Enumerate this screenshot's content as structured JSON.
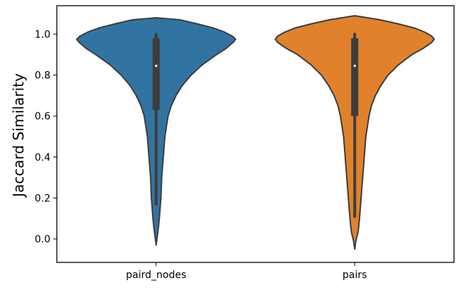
{
  "chart_data": {
    "type": "violin",
    "title": "",
    "xlabel": "",
    "ylabel": "Jaccard Similarity",
    "ylim": [
      -0.1,
      1.14
    ],
    "yticks": [
      0.0,
      0.2,
      0.4,
      0.6,
      0.8,
      1.0
    ],
    "ytick_labels": [
      "0.0",
      "0.2",
      "0.4",
      "0.6",
      "0.8",
      "1.0"
    ],
    "grid": false,
    "legend": "none",
    "categories": [
      "paird_nodes",
      "pairs"
    ],
    "series": [
      {
        "category": "paird_nodes",
        "color": "#3274a1",
        "median": 0.845,
        "q1": 0.63,
        "q3": 0.98,
        "whisker_low": 0.17,
        "whisker_high": 1.0,
        "density": [
          [
            -0.03,
            0.0
          ],
          [
            0.0,
            0.01
          ],
          [
            0.03,
            0.02
          ],
          [
            0.06,
            0.03
          ],
          [
            0.1,
            0.04
          ],
          [
            0.15,
            0.05
          ],
          [
            0.2,
            0.06
          ],
          [
            0.25,
            0.065
          ],
          [
            0.3,
            0.07
          ],
          [
            0.35,
            0.08
          ],
          [
            0.4,
            0.09
          ],
          [
            0.45,
            0.1
          ],
          [
            0.5,
            0.11
          ],
          [
            0.55,
            0.13
          ],
          [
            0.6,
            0.15
          ],
          [
            0.65,
            0.19
          ],
          [
            0.7,
            0.25
          ],
          [
            0.75,
            0.33
          ],
          [
            0.8,
            0.44
          ],
          [
            0.85,
            0.58
          ],
          [
            0.9,
            0.76
          ],
          [
            0.93,
            0.88
          ],
          [
            0.96,
            0.97
          ],
          [
            0.975,
            1.0
          ],
          [
            0.99,
            0.96
          ],
          [
            1.01,
            0.86
          ],
          [
            1.03,
            0.72
          ],
          [
            1.05,
            0.52
          ],
          [
            1.07,
            0.3
          ],
          [
            1.08,
            0.0
          ]
        ]
      },
      {
        "category": "pairs",
        "color": "#e1812c",
        "median": 0.845,
        "q1": 0.6,
        "q3": 0.98,
        "whisker_low": 0.11,
        "whisker_high": 1.0,
        "density": [
          [
            -0.05,
            0.0
          ],
          [
            -0.02,
            0.01
          ],
          [
            0.0,
            0.02
          ],
          [
            0.03,
            0.04
          ],
          [
            0.06,
            0.05
          ],
          [
            0.1,
            0.06
          ],
          [
            0.15,
            0.07
          ],
          [
            0.2,
            0.08
          ],
          [
            0.25,
            0.09
          ],
          [
            0.3,
            0.1
          ],
          [
            0.35,
            0.11
          ],
          [
            0.4,
            0.12
          ],
          [
            0.45,
            0.13
          ],
          [
            0.5,
            0.14
          ],
          [
            0.55,
            0.16
          ],
          [
            0.6,
            0.18
          ],
          [
            0.65,
            0.21
          ],
          [
            0.7,
            0.26
          ],
          [
            0.75,
            0.33
          ],
          [
            0.8,
            0.42
          ],
          [
            0.85,
            0.55
          ],
          [
            0.9,
            0.72
          ],
          [
            0.93,
            0.86
          ],
          [
            0.96,
            0.97
          ],
          [
            0.975,
            1.0
          ],
          [
            0.99,
            0.97
          ],
          [
            1.01,
            0.88
          ],
          [
            1.03,
            0.75
          ],
          [
            1.05,
            0.55
          ],
          [
            1.07,
            0.32
          ],
          [
            1.09,
            0.0
          ]
        ]
      }
    ]
  }
}
